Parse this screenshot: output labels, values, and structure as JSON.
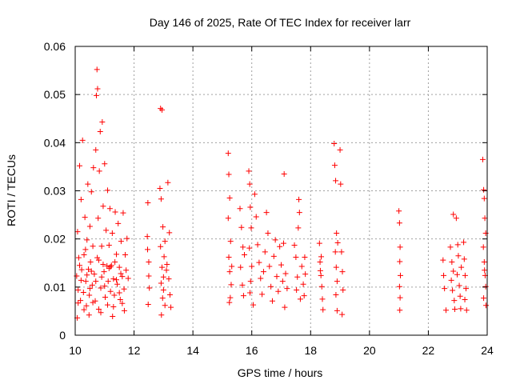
{
  "chart_data": {
    "type": "scatter",
    "title": "Day 146 of 2025, Rate Of TEC Index for receiver larr",
    "xlabel": "GPS time / hours",
    "ylabel": "ROTI / TECUs",
    "xlim": [
      10,
      24
    ],
    "ylim": [
      0,
      0.06
    ],
    "xticks": [
      "10",
      "12",
      "14",
      "16",
      "18",
      "20",
      "22",
      "24"
    ],
    "yticks": [
      "0",
      "0.01",
      "0.02",
      "0.03",
      "0.04",
      "0.05",
      "0.06"
    ],
    "grid": true,
    "marker": "+",
    "color": "#ff0000",
    "series": [
      {
        "points": [
          [
            10.05,
            0.0123
          ],
          [
            10.08,
            0.0215
          ],
          [
            10.1,
            0.0094
          ],
          [
            10.12,
            0.0161
          ],
          [
            10.15,
            0.0352
          ],
          [
            10.18,
            0.0072
          ],
          [
            10.2,
            0.0282
          ],
          [
            10.22,
            0.0136
          ],
          [
            10.25,
            0.0405
          ],
          [
            10.28,
            0.0089
          ],
          [
            10.3,
            0.0167
          ],
          [
            10.33,
            0.0245
          ],
          [
            10.36,
            0.0112
          ],
          [
            10.38,
            0.0061
          ],
          [
            10.4,
            0.0198
          ],
          [
            10.43,
            0.0314
          ],
          [
            10.45,
            0.0137
          ],
          [
            10.48,
            0.0083
          ],
          [
            10.5,
            0.0226
          ],
          [
            10.52,
            0.0152
          ],
          [
            10.55,
            0.0298
          ],
          [
            10.58,
            0.0104
          ],
          [
            10.6,
            0.0185
          ],
          [
            10.62,
            0.0348
          ],
          [
            10.65,
            0.0127
          ],
          [
            10.68,
            0.0071
          ],
          [
            10.7,
            0.0385
          ],
          [
            10.72,
            0.0498
          ],
          [
            10.74,
            0.0552
          ],
          [
            10.76,
            0.0512
          ],
          [
            10.78,
            0.0243
          ],
          [
            10.8,
            0.0156
          ],
          [
            10.82,
            0.0341
          ],
          [
            10.85,
            0.0423
          ],
          [
            10.87,
            0.0098
          ],
          [
            10.9,
            0.0185
          ],
          [
            10.92,
            0.0443
          ],
          [
            10.95,
            0.0268
          ],
          [
            10.98,
            0.0132
          ],
          [
            11.0,
            0.0356
          ],
          [
            11.02,
            0.0079
          ],
          [
            11.05,
            0.0218
          ],
          [
            11.08,
            0.0144
          ],
          [
            11.1,
            0.0301
          ],
          [
            11.12,
            0.0112
          ],
          [
            11.15,
            0.0187
          ],
          [
            11.18,
            0.0263
          ],
          [
            11.2,
            0.0091
          ],
          [
            11.23,
            0.0145
          ],
          [
            11.26,
            0.0212
          ],
          [
            11.3,
            0.0117
          ],
          [
            11.33,
            0.0083
          ],
          [
            11.36,
            0.0256
          ],
          [
            11.4,
            0.0168
          ],
          [
            11.43,
            0.0106
          ],
          [
            11.46,
            0.0232
          ],
          [
            11.5,
            0.0141
          ],
          [
            11.53,
            0.0074
          ],
          [
            11.56,
            0.0195
          ],
          [
            11.6,
            0.0122
          ],
          [
            11.63,
            0.0254
          ],
          [
            11.66,
            0.0096
          ],
          [
            11.7,
            0.0167
          ],
          [
            11.73,
            0.0135
          ],
          [
            11.76,
            0.0201
          ],
          [
            11.8,
            0.0118
          ],
          [
            10.1,
            0.0067
          ],
          [
            10.2,
            0.0114
          ],
          [
            10.3,
            0.0053
          ],
          [
            10.4,
            0.0125
          ],
          [
            10.5,
            0.0097
          ],
          [
            10.6,
            0.0068
          ],
          [
            10.7,
            0.0112
          ],
          [
            10.8,
            0.0054
          ],
          [
            10.9,
            0.0121
          ],
          [
            11.0,
            0.0102
          ],
          [
            11.1,
            0.0063
          ],
          [
            11.2,
            0.0142
          ],
          [
            11.3,
            0.0059
          ],
          [
            11.4,
            0.0115
          ],
          [
            11.5,
            0.0088
          ],
          [
            11.6,
            0.0066
          ],
          [
            10.15,
            0.0145
          ],
          [
            10.35,
            0.0178
          ],
          [
            10.55,
            0.0133
          ],
          [
            10.75,
            0.0161
          ],
          [
            10.95,
            0.0147
          ],
          [
            11.15,
            0.0139
          ],
          [
            11.35,
            0.0152
          ],
          [
            11.55,
            0.0128
          ],
          [
            10.07,
            0.0036
          ],
          [
            10.47,
            0.0042
          ],
          [
            10.87,
            0.0047
          ],
          [
            11.27,
            0.0039
          ],
          [
            11.67,
            0.0051
          ],
          [
            12.45,
            0.0205
          ],
          [
            12.47,
            0.0275
          ],
          [
            12.5,
            0.0152
          ],
          [
            12.52,
            0.0098
          ],
          [
            12.48,
            0.0064
          ],
          [
            12.5,
            0.0123
          ],
          [
            12.46,
            0.0178
          ],
          [
            12.9,
            0.0471
          ],
          [
            12.95,
            0.0468
          ],
          [
            12.88,
            0.0305
          ],
          [
            12.92,
            0.0283
          ],
          [
            12.98,
            0.0225
          ],
          [
            12.9,
            0.0184
          ],
          [
            12.95,
            0.0141
          ],
          [
            12.92,
            0.0108
          ],
          [
            12.97,
            0.0077
          ],
          [
            12.93,
            0.0042
          ],
          [
            13.0,
            0.0121
          ],
          [
            13.02,
            0.0163
          ],
          [
            13.05,
            0.0195
          ],
          [
            13.0,
            0.0094
          ],
          [
            13.05,
            0.0062
          ],
          [
            13.1,
            0.0135
          ],
          [
            13.15,
            0.0317
          ],
          [
            13.2,
            0.0213
          ],
          [
            13.18,
            0.0117
          ],
          [
            13.22,
            0.0084
          ],
          [
            13.25,
            0.0058
          ],
          [
            13.12,
            0.0147
          ],
          [
            15.2,
            0.0378
          ],
          [
            15.22,
            0.0334
          ],
          [
            15.25,
            0.0285
          ],
          [
            15.2,
            0.0243
          ],
          [
            15.28,
            0.0195
          ],
          [
            15.22,
            0.0162
          ],
          [
            15.25,
            0.0132
          ],
          [
            15.3,
            0.0105
          ],
          [
            15.27,
            0.0078
          ],
          [
            15.24,
            0.0068
          ],
          [
            15.32,
            0.0143
          ],
          [
            15.6,
            0.0263
          ],
          [
            15.65,
            0.0224
          ],
          [
            15.7,
            0.0183
          ],
          [
            15.62,
            0.0141
          ],
          [
            15.68,
            0.0104
          ],
          [
            15.72,
            0.0082
          ],
          [
            15.75,
            0.0167
          ],
          [
            15.9,
            0.0341
          ],
          [
            15.93,
            0.0314
          ],
          [
            15.95,
            0.0266
          ],
          [
            15.98,
            0.0223
          ],
          [
            15.92,
            0.0181
          ],
          [
            16.0,
            0.0143
          ],
          [
            15.96,
            0.0112
          ],
          [
            15.94,
            0.0088
          ],
          [
            16.05,
            0.0063
          ],
          [
            16.1,
            0.0293
          ],
          [
            16.15,
            0.0246
          ],
          [
            16.2,
            0.0188
          ],
          [
            16.25,
            0.0151
          ],
          [
            16.3,
            0.0118
          ],
          [
            16.35,
            0.0085
          ],
          [
            16.4,
            0.0132
          ],
          [
            16.45,
            0.0173
          ],
          [
            16.5,
            0.0255
          ],
          [
            16.55,
            0.0212
          ],
          [
            16.6,
            0.0143
          ],
          [
            16.65,
            0.0101
          ],
          [
            16.7,
            0.0071
          ],
          [
            16.75,
            0.0164
          ],
          [
            16.8,
            0.0198
          ],
          [
            16.85,
            0.0122
          ],
          [
            16.9,
            0.0091
          ],
          [
            16.95,
            0.0184
          ],
          [
            17.0,
            0.0146
          ],
          [
            17.05,
            0.0112
          ],
          [
            17.1,
            0.0335
          ],
          [
            17.08,
            0.0191
          ],
          [
            17.12,
            0.0058
          ],
          [
            17.15,
            0.0128
          ],
          [
            17.2,
            0.0097
          ],
          [
            17.45,
            0.0187
          ],
          [
            17.5,
            0.0162
          ],
          [
            17.55,
            0.0121
          ],
          [
            17.6,
            0.0282
          ],
          [
            17.62,
            0.0255
          ],
          [
            17.58,
            0.0223
          ],
          [
            17.52,
            0.0094
          ],
          [
            17.65,
            0.0075
          ],
          [
            17.7,
            0.0143
          ],
          [
            17.75,
            0.0106
          ],
          [
            17.8,
            0.0162
          ],
          [
            17.82,
            0.0127
          ],
          [
            17.78,
            0.0082
          ],
          [
            18.3,
            0.0191
          ],
          [
            18.32,
            0.0152
          ],
          [
            18.35,
            0.0124
          ],
          [
            18.38,
            0.0101
          ],
          [
            18.4,
            0.0075
          ],
          [
            18.42,
            0.0053
          ],
          [
            18.36,
            0.0163
          ],
          [
            18.33,
            0.0134
          ],
          [
            18.8,
            0.0398
          ],
          [
            18.82,
            0.0353
          ],
          [
            18.85,
            0.0321
          ],
          [
            18.88,
            0.0212
          ],
          [
            18.84,
            0.0173
          ],
          [
            18.87,
            0.0141
          ],
          [
            18.9,
            0.0112
          ],
          [
            18.86,
            0.0084
          ],
          [
            18.9,
            0.0051
          ],
          [
            18.92,
            0.0192
          ],
          [
            19.0,
            0.0385
          ],
          [
            19.02,
            0.0314
          ],
          [
            19.05,
            0.0173
          ],
          [
            19.08,
            0.0132
          ],
          [
            19.1,
            0.0094
          ],
          [
            19.07,
            0.0043
          ],
          [
            21.0,
            0.0258
          ],
          [
            21.02,
            0.0233
          ],
          [
            21.04,
            0.0183
          ],
          [
            21.03,
            0.0153
          ],
          [
            21.05,
            0.0124
          ],
          [
            21.02,
            0.0101
          ],
          [
            21.04,
            0.0078
          ],
          [
            21.03,
            0.0052
          ],
          [
            22.5,
            0.0156
          ],
          [
            22.52,
            0.0124
          ],
          [
            22.55,
            0.0097
          ],
          [
            22.6,
            0.0052
          ],
          [
            22.75,
            0.0183
          ],
          [
            22.8,
            0.0152
          ],
          [
            22.85,
            0.0133
          ],
          [
            22.78,
            0.0114
          ],
          [
            22.82,
            0.0093
          ],
          [
            22.88,
            0.0072
          ],
          [
            22.9,
            0.0054
          ],
          [
            22.85,
            0.0251
          ],
          [
            22.95,
            0.0243
          ],
          [
            23.0,
            0.0188
          ],
          [
            23.02,
            0.0165
          ],
          [
            22.98,
            0.0126
          ],
          [
            23.05,
            0.0103
          ],
          [
            23.08,
            0.0081
          ],
          [
            23.1,
            0.0055
          ],
          [
            23.12,
            0.0141
          ],
          [
            23.2,
            0.0193
          ],
          [
            23.22,
            0.0158
          ],
          [
            23.25,
            0.0124
          ],
          [
            23.28,
            0.0097
          ],
          [
            23.24,
            0.0074
          ],
          [
            23.3,
            0.0052
          ],
          [
            23.85,
            0.0365
          ],
          [
            23.88,
            0.0302
          ],
          [
            23.9,
            0.0284
          ],
          [
            23.92,
            0.0243
          ],
          [
            23.95,
            0.0212
          ],
          [
            23.87,
            0.0183
          ],
          [
            23.9,
            0.0152
          ],
          [
            23.93,
            0.0124
          ],
          [
            23.95,
            0.0101
          ],
          [
            23.88,
            0.0077
          ],
          [
            23.96,
            0.0062
          ],
          [
            23.91,
            0.0135
          ]
        ]
      }
    ]
  }
}
